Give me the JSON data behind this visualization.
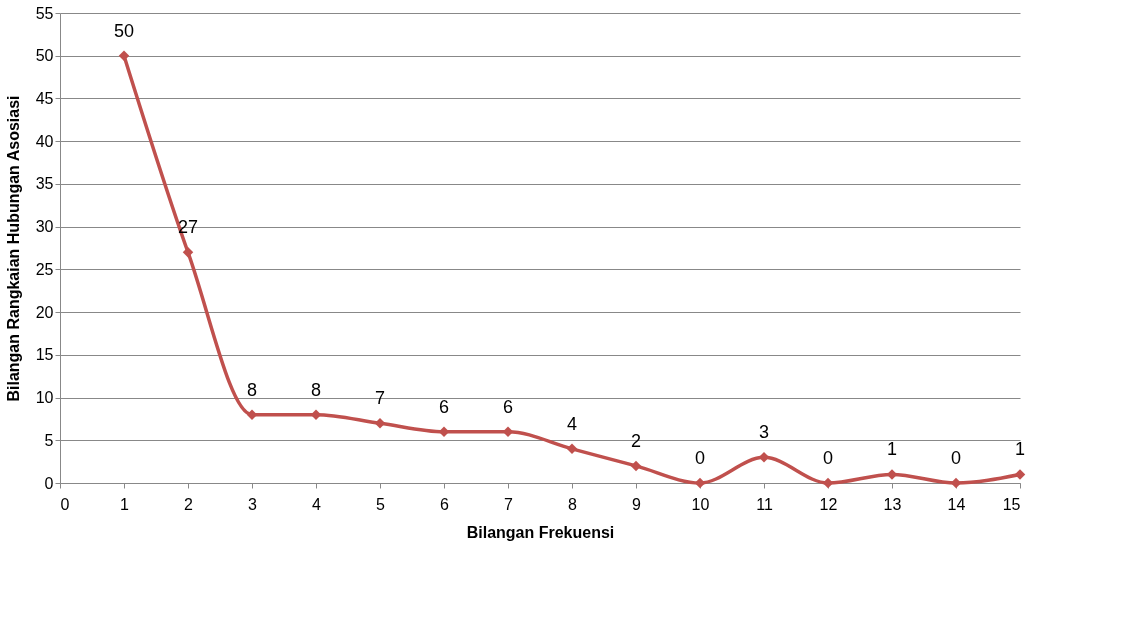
{
  "chart_data": {
    "type": "line",
    "xlabel": "Bilangan  Frekuensi",
    "ylabel": "Bilangan  Rangkaian  Hubungan  Asosiasi",
    "x": [
      1,
      2,
      3,
      4,
      5,
      6,
      7,
      8,
      9,
      10,
      11,
      12,
      13,
      14,
      15
    ],
    "series": [
      {
        "color": "#c0504d",
        "values": [
          50,
          27,
          8,
          8,
          7,
          6,
          6,
          4,
          2,
          0,
          3,
          0,
          1,
          0,
          1
        ]
      }
    ],
    "xlim": [
      0,
      15
    ],
    "xticks": [
      0,
      1,
      2,
      3,
      4,
      5,
      6,
      7,
      8,
      9,
      10,
      11,
      12,
      13,
      14,
      15
    ],
    "ylim": [
      0,
      55
    ],
    "yticks": [
      0,
      5,
      10,
      15,
      20,
      25,
      30,
      35,
      40,
      45,
      50,
      55
    ],
    "grid": "y",
    "marker": "diamond",
    "line_style": "solid",
    "data_labels": true
  }
}
